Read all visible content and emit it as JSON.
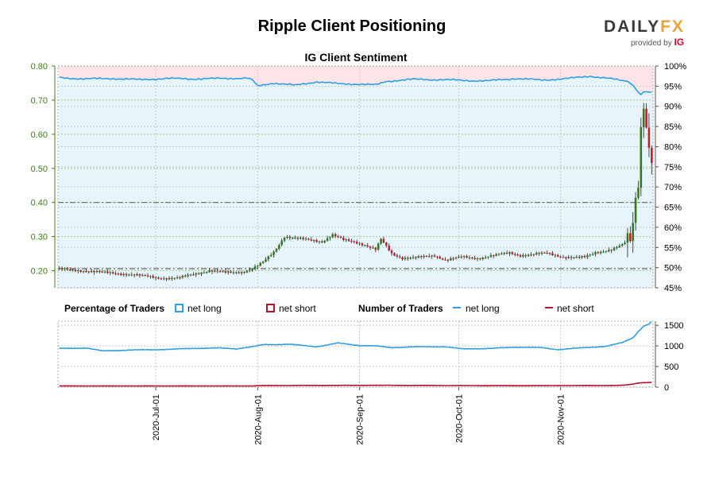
{
  "title": "Ripple Client Positioning",
  "subtitle": "IG Client Sentiment",
  "logo": {
    "brand_main": "DAILY",
    "brand_accent": "FX",
    "provided_by": "provided by",
    "provider": "IG"
  },
  "legend": {
    "percentage_title": "Percentage of Traders",
    "count_title": "Number of Traders",
    "net_long": "net long",
    "net_short": "net short"
  },
  "colors": {
    "long": "#2f9fe5",
    "short": "#b5122e",
    "long_fill": "#e6f4fb",
    "short_fill": "#fce4e7",
    "up_candle": "#2e7d18",
    "down_candle": "#c0202a",
    "price_axis": "#3c7d16"
  },
  "chart_data": [
    {
      "type": "candlestick",
      "name": "price",
      "x_ticks": [
        "2020-Jul-01",
        "2020-Aug-01",
        "2020-Sep-01",
        "2020-Oct-01",
        "2020-Nov-01"
      ],
      "x_range": [
        "2020-Jun-02",
        "2020-Nov-28"
      ],
      "ylim": [
        0.15,
        0.8
      ],
      "y_ticks": [
        "0.80",
        "0.70",
        "0.60",
        "0.50",
        "0.40",
        "0.30",
        "0.20"
      ],
      "reference_lines": [
        0.4,
        0.206
      ],
      "anchors": [
        [
          0,
          0.205
        ],
        [
          8,
          0.2
        ],
        [
          20,
          0.193
        ],
        [
          30,
          0.186
        ],
        [
          38,
          0.178
        ],
        [
          44,
          0.178
        ],
        [
          50,
          0.19
        ],
        [
          56,
          0.2
        ],
        [
          62,
          0.195
        ],
        [
          68,
          0.196
        ],
        [
          72,
          0.205
        ],
        [
          76,
          0.225
        ],
        [
          80,
          0.255
        ],
        [
          84,
          0.3
        ],
        [
          88,
          0.295
        ],
        [
          94,
          0.29
        ],
        [
          98,
          0.285
        ],
        [
          102,
          0.305
        ],
        [
          106,
          0.29
        ],
        [
          110,
          0.285
        ],
        [
          114,
          0.275
        ],
        [
          118,
          0.262
        ],
        [
          120,
          0.292
        ],
        [
          124,
          0.25
        ],
        [
          128,
          0.237
        ],
        [
          134,
          0.239
        ],
        [
          140,
          0.244
        ],
        [
          144,
          0.232
        ],
        [
          150,
          0.24
        ],
        [
          156,
          0.236
        ],
        [
          162,
          0.245
        ],
        [
          168,
          0.252
        ],
        [
          172,
          0.245
        ],
        [
          176,
          0.247
        ],
        [
          182,
          0.252
        ],
        [
          188,
          0.24
        ],
        [
          192,
          0.238
        ],
        [
          196,
          0.24
        ],
        [
          200,
          0.254
        ],
        [
          206,
          0.261
        ],
        [
          210,
          0.275
        ],
        [
          213,
          0.298
        ],
        [
          214,
          0.345
        ],
        [
          215,
          0.42
        ],
        [
          216,
          0.47
        ],
        [
          217,
          0.62
        ],
        [
          218,
          0.7
        ],
        [
          219,
          0.62
        ],
        [
          220,
          0.56
        ],
        [
          221,
          0.52
        ]
      ]
    },
    {
      "type": "area",
      "name": "percentage_net_long",
      "ylim": [
        45,
        100
      ],
      "y_ticks": [
        "100%",
        "95%",
        "90%",
        "85%",
        "80%",
        "75%",
        "70%",
        "65%",
        "60%",
        "55%",
        "50%",
        "45%"
      ],
      "anchors": [
        [
          0,
          97.1
        ],
        [
          10,
          96.8
        ],
        [
          20,
          96.9
        ],
        [
          30,
          96.6
        ],
        [
          40,
          96.9
        ],
        [
          50,
          96.8
        ],
        [
          60,
          96.9
        ],
        [
          70,
          97.0
        ],
        [
          72,
          96.5
        ],
        [
          74,
          95.0
        ],
        [
          80,
          95.8
        ],
        [
          88,
          95.2
        ],
        [
          96,
          96.1
        ],
        [
          104,
          95.6
        ],
        [
          112,
          95.5
        ],
        [
          118,
          95.3
        ],
        [
          122,
          96.2
        ],
        [
          132,
          96.7
        ],
        [
          142,
          96.6
        ],
        [
          152,
          96.4
        ],
        [
          160,
          96.3
        ],
        [
          170,
          96.9
        ],
        [
          180,
          96.5
        ],
        [
          190,
          96.9
        ],
        [
          198,
          97.5
        ],
        [
          206,
          96.8
        ],
        [
          212,
          96.2
        ],
        [
          214,
          95.2
        ],
        [
          216,
          93.5
        ],
        [
          217,
          92.9
        ],
        [
          218,
          93.6
        ],
        [
          221,
          93.5
        ]
      ]
    },
    {
      "type": "line",
      "name": "number_of_traders",
      "ylim": [
        0,
        1600
      ],
      "y_ticks": [
        "1500",
        "1000",
        "500",
        "0"
      ],
      "series": [
        {
          "key": "net_long",
          "anchors": [
            [
              0,
              940
            ],
            [
              10,
              950
            ],
            [
              16,
              880
            ],
            [
              30,
              905
            ],
            [
              40,
              915
            ],
            [
              50,
              940
            ],
            [
              60,
              950
            ],
            [
              66,
              930
            ],
            [
              72,
              980
            ],
            [
              76,
              1030
            ],
            [
              86,
              1040
            ],
            [
              96,
              980
            ],
            [
              104,
              1070
            ],
            [
              112,
              1010
            ],
            [
              118,
              1000
            ],
            [
              124,
              960
            ],
            [
              134,
              980
            ],
            [
              144,
              980
            ],
            [
              150,
              930
            ],
            [
              160,
              935
            ],
            [
              170,
              970
            ],
            [
              180,
              960
            ],
            [
              186,
              910
            ],
            [
              196,
              960
            ],
            [
              204,
              990
            ],
            [
              210,
              1080
            ],
            [
              214,
              1200
            ],
            [
              216,
              1350
            ],
            [
              218,
              1480
            ],
            [
              220,
              1530
            ],
            [
              221,
              1580
            ]
          ]
        },
        {
          "key": "net_short",
          "anchors": [
            [
              0,
              30
            ],
            [
              72,
              30
            ],
            [
              76,
              40
            ],
            [
              120,
              45
            ],
            [
              170,
              35
            ],
            [
              208,
              42
            ],
            [
              212,
              55
            ],
            [
              214,
              75
            ],
            [
              216,
              100
            ],
            [
              218,
              110
            ],
            [
              221,
              115
            ]
          ]
        }
      ]
    }
  ]
}
